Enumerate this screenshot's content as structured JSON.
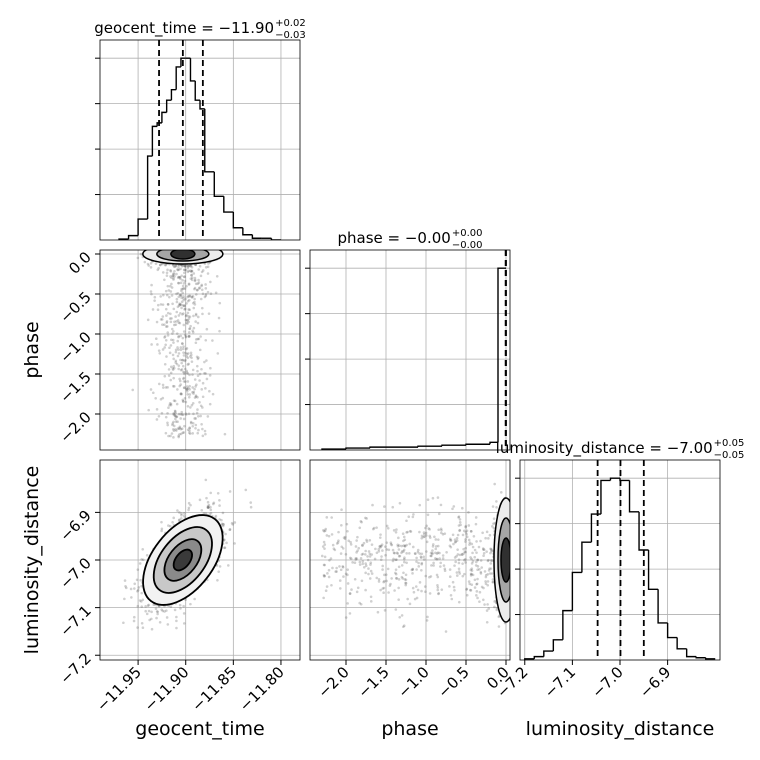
{
  "chart_data": {
    "type": "corner",
    "parameters": [
      "geocent_time",
      "phase",
      "luminosity_distance"
    ],
    "axis_labels": {
      "geocent_time": "geocent_time",
      "phase": "phase",
      "luminosity_distance": "luminosity_distance"
    },
    "ranges": {
      "geocent_time": [
        -11.99,
        -11.78
      ],
      "phase": [
        -2.45,
        0.05
      ],
      "luminosity_distance": [
        -7.21,
        -6.79
      ]
    },
    "ticks": {
      "geocent_time": {
        "values": [
          -11.95,
          -11.9,
          -11.85,
          -11.8
        ],
        "labels": [
          "−11.95",
          "−11.90",
          "−11.85",
          "−11.80"
        ]
      },
      "phase": {
        "x_values": [
          -2.0,
          -1.5,
          -1.0,
          -0.5,
          0.0
        ],
        "x_labels": [
          "−2.0",
          "−1.5",
          "−1.0",
          "−0.5",
          "0.0"
        ],
        "y_values": [
          0.0,
          -0.5,
          -1.0,
          -1.5,
          -2.0
        ],
        "y_labels": [
          "0.0",
          "−0.5",
          "−1.0",
          "−1.5",
          "−2.0"
        ]
      },
      "luminosity_distance": {
        "x_values": [
          -7.2,
          -7.1,
          -7.0,
          -6.9
        ],
        "x_labels": [
          "−7.2",
          "−7.1",
          "−7.0",
          "−6.9"
        ],
        "y_values": [
          -6.9,
          -7.0,
          -7.1,
          -7.2
        ],
        "y_labels": [
          "−6.9",
          "−7.0",
          "−7.1",
          "−7.2"
        ]
      }
    },
    "titles": {
      "geocent_time": {
        "main": "geocent_time = −11.90",
        "plus": "+0.02",
        "minus": "−0.03"
      },
      "phase": {
        "main": "phase = −0.00",
        "plus": "+0.00",
        "minus": "−0.00"
      },
      "luminosity_distance": {
        "main": "luminosity_distance = −7.00",
        "plus": "+0.05",
        "minus": "−0.05"
      }
    },
    "quantiles": {
      "geocent_time": [
        -11.928,
        -11.903,
        -11.882
      ],
      "phase": [
        -0.004,
        -0.002,
        -0.001
      ],
      "luminosity_distance": [
        -7.047,
        -6.999,
        -6.95
      ]
    },
    "histograms": {
      "geocent_time": {
        "edges": [
          -11.97,
          -11.96,
          -11.95,
          -11.94,
          -11.935,
          -11.93,
          -11.925,
          -11.92,
          -11.915,
          -11.91,
          -11.905,
          -11.9,
          -11.895,
          -11.89,
          -11.885,
          -11.88,
          -11.87,
          -11.86,
          -11.85,
          -11.84,
          -11.83,
          -11.82,
          -11.81,
          -11.8
        ],
        "counts": [
          1,
          5,
          24,
          96,
          130,
          134,
          146,
          160,
          172,
          198,
          208,
          208,
          182,
          160,
          150,
          78,
          50,
          32,
          14,
          6,
          2,
          2,
          0
        ]
      },
      "phase": {
        "edges": [
          -2.3,
          -2.0,
          -1.7,
          -1.4,
          -1.1,
          -0.8,
          -0.5,
          -0.2,
          -0.1,
          0.0
        ],
        "counts": [
          1,
          2,
          3,
          3,
          4,
          5,
          6,
          8,
          190
        ]
      },
      "luminosity_distance": {
        "edges": [
          -7.2,
          -7.18,
          -7.16,
          -7.14,
          -7.12,
          -7.1,
          -7.08,
          -7.06,
          -7.04,
          -7.02,
          -7.0,
          -6.98,
          -6.96,
          -6.94,
          -6.92,
          -6.9,
          -6.88,
          -6.86,
          -6.84,
          -6.82,
          -6.8
        ],
        "counts": [
          1,
          3,
          8,
          18,
          44,
          78,
          105,
          130,
          160,
          162,
          160,
          132,
          98,
          63,
          33,
          20,
          10,
          3,
          2,
          1
        ]
      }
    },
    "means": {
      "geocent_time": -11.903,
      "phase": -0.35,
      "luminosity_distance": -7.0
    },
    "scatter": {
      "geocent_time|phase": {
        "x_mean": -11.903,
        "x_sd": 0.014,
        "y_shape": "concentrated near 0.0, tail to −2.3"
      },
      "geocent_time|luminosity_distance": {
        "x_mean": -11.903,
        "x_sd": 0.02,
        "y_mean": -7.0,
        "y_sd": 0.05,
        "correlation": 0.6
      },
      "phase|luminosity_distance": {
        "x_shape": "concentrated near 0.0, tail to −2.3",
        "y_mean": -7.0,
        "y_sd": 0.05
      }
    },
    "grid": true
  }
}
